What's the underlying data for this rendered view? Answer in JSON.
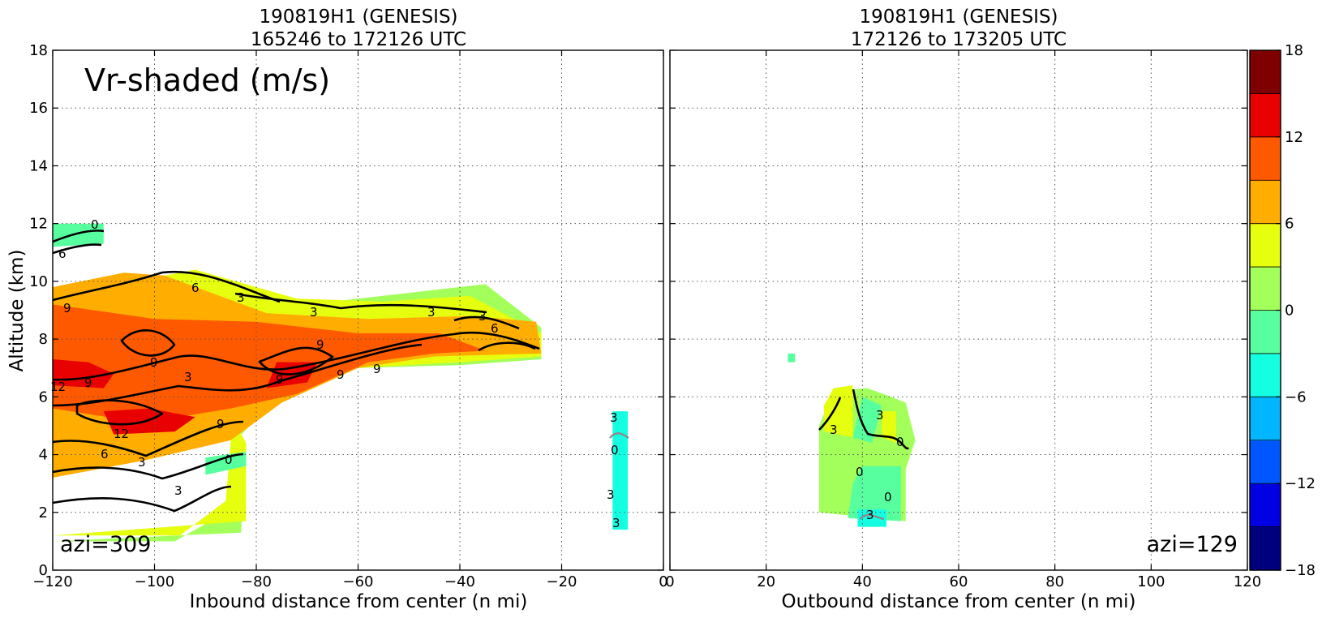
{
  "figure": {
    "left_title": [
      "190819H1 (GENESIS)",
      "165246 to 172126 UTC"
    ],
    "right_title": [
      "190819H1 (GENESIS)",
      "172126 to 173205 UTC"
    ],
    "variable_label": "Vr-shaded (m/s)",
    "left_azi": "azi=309",
    "right_azi": "azi=129"
  },
  "colors": {
    "levels": [
      -18,
      -15,
      -12,
      -9,
      -6,
      -3,
      0,
      3,
      6,
      9,
      12,
      15,
      18
    ],
    "fills": [
      "#00007f",
      "#0000e3",
      "#0057ff",
      "#00b7ff",
      "#14ffe2",
      "#58ff9f",
      "#a3ff5a",
      "#e6ff0f",
      "#ffae00",
      "#ff5900",
      "#e90000",
      "#7f0000"
    ]
  },
  "chart_data": [
    {
      "type": "heatmap",
      "title": "190819H1 (GENESIS)\n165246 to 172126 UTC",
      "xlabel": "Inbound distance from center (n mi)",
      "ylabel": "Altitude (km)",
      "xlim": [
        -120,
        0
      ],
      "ylim": [
        0,
        18
      ],
      "xticks": [
        "−120",
        "−100",
        "−80",
        "−60",
        "−40",
        "−20",
        "0"
      ],
      "yticks": [
        "0",
        "2",
        "4",
        "6",
        "8",
        "10",
        "12",
        "14",
        "16",
        "18"
      ],
      "grid": true,
      "annotation": "Vr-shaded (m/s)",
      "azi_label": "azi=309",
      "regions": [
        {
          "value": 1.5,
          "polygon": [
            [
              -120,
              1
            ],
            [
              -83,
              1.3
            ],
            [
              -82,
              4.4
            ],
            [
              -87,
              6
            ],
            [
              -100,
              8
            ],
            [
              -104,
              10
            ],
            [
              -90,
              10.3
            ],
            [
              -70,
              9.2
            ],
            [
              -50,
              9.6
            ],
            [
              -35,
              9.9
            ],
            [
              -24,
              8.4
            ],
            [
              -24,
              7.3
            ],
            [
              -40,
              7.1
            ],
            [
              -60,
              7
            ],
            [
              -75,
              6.2
            ],
            [
              -85,
              4.3
            ],
            [
              -86,
              2
            ],
            [
              -96,
              1
            ],
            [
              -120,
              1
            ]
          ]
        },
        {
          "value": 4.5,
          "polygon": [
            [
              -120,
              1.2
            ],
            [
              -82,
              1.7
            ],
            [
              -82,
              4.4
            ],
            [
              -87,
              6
            ],
            [
              -100,
              8
            ],
            [
              -104,
              10
            ],
            [
              -92,
              10.4
            ],
            [
              -72,
              9.4
            ],
            [
              -55,
              9.3
            ],
            [
              -38,
              9.5
            ],
            [
              -24,
              8.2
            ],
            [
              -24,
              7.4
            ],
            [
              -40,
              7.2
            ],
            [
              -60,
              7
            ],
            [
              -75,
              6
            ],
            [
              -85,
              4.5
            ],
            [
              -86,
              2.4
            ],
            [
              -95,
              1.2
            ],
            [
              -120,
              1.2
            ]
          ]
        },
        {
          "value": 7.5,
          "polygon": [
            [
              -120,
              3.2
            ],
            [
              -102,
              3.8
            ],
            [
              -85,
              4.5
            ],
            [
              -75,
              5.8
            ],
            [
              -60,
              7
            ],
            [
              -45,
              7.4
            ],
            [
              -24,
              7.5
            ],
            [
              -25,
              8.6
            ],
            [
              -38,
              8.8
            ],
            [
              -58,
              8.7
            ],
            [
              -78,
              8.9
            ],
            [
              -98,
              10.2
            ],
            [
              -106,
              10.3
            ],
            [
              -120,
              9.8
            ]
          ]
        },
        {
          "value": 10.5,
          "polygon": [
            [
              -120,
              5.6
            ],
            [
              -102,
              5.1
            ],
            [
              -85,
              5.6
            ],
            [
              -72,
              6.1
            ],
            [
              -58,
              7.2
            ],
            [
              -45,
              7.5
            ],
            [
              -35,
              7.6
            ],
            [
              -44,
              8.2
            ],
            [
              -60,
              8.2
            ],
            [
              -80,
              8.6
            ],
            [
              -100,
              8.7
            ],
            [
              -112,
              9
            ],
            [
              -120,
              9.2
            ]
          ]
        },
        {
          "value": 13.5,
          "polygon": [
            [
              -120,
              6.4
            ],
            [
              -110,
              6.3
            ],
            [
              -108,
              6.8
            ],
            [
              -113,
              7.2
            ],
            [
              -120,
              7.3
            ]
          ]
        },
        {
          "value": 13.5,
          "polygon": [
            [
              -108,
              4.7
            ],
            [
              -96,
              4.8
            ],
            [
              -92,
              5.3
            ],
            [
              -101,
              5.6
            ],
            [
              -110,
              5.5
            ]
          ]
        },
        {
          "value": 13.5,
          "polygon": [
            [
              -78,
              6.3
            ],
            [
              -70,
              6.5
            ],
            [
              -68,
              7.2
            ],
            [
              -76,
              7.2
            ]
          ]
        },
        {
          "value": -1.5,
          "polygon": [
            [
              -120,
              11.2
            ],
            [
              -110,
              11.3
            ],
            [
              -110,
              12
            ],
            [
              -120,
              12
            ]
          ]
        },
        {
          "value": -1.5,
          "polygon": [
            [
              -90,
              3.3
            ],
            [
              -82,
              3.6
            ],
            [
              -82,
              4.1
            ],
            [
              -90,
              3.9
            ]
          ]
        },
        {
          "value": -4.5,
          "polygon": [
            [
              -10,
              1.4
            ],
            [
              -7,
              1.4
            ],
            [
              -7,
              5.5
            ],
            [
              -10,
              5.5
            ]
          ]
        }
      ],
      "contour_labels": [
        "0",
        "6",
        "6",
        "3",
        "3",
        "3",
        "3",
        "6",
        "9",
        "9",
        "9",
        "9",
        "9",
        "9",
        "9",
        "12",
        "12",
        "6",
        "3",
        "0",
        "3",
        "9",
        "3",
        "0",
        "3",
        "3",
        "3"
      ]
    },
    {
      "type": "heatmap",
      "title": "190819H1 (GENESIS)\n172126 to 173205 UTC",
      "xlabel": "Outbound distance from center (n mi)",
      "ylabel": "",
      "xlim": [
        0,
        120
      ],
      "ylim": [
        0,
        18
      ],
      "xticks": [
        "0",
        "20",
        "40",
        "60",
        "80",
        "100",
        "120"
      ],
      "yticks": [],
      "grid": true,
      "azi_label": "azi=129",
      "regions": [
        {
          "value": 1.5,
          "polygon": [
            [
              31,
              2
            ],
            [
              49,
              1.7
            ],
            [
              49,
              3.5
            ],
            [
              51,
              4.5
            ],
            [
              49,
              5.8
            ],
            [
              46,
              6
            ],
            [
              41,
              6.3
            ],
            [
              34,
              6.2
            ],
            [
              31,
              5
            ]
          ]
        },
        {
          "value": 4.5,
          "polygon": [
            [
              32,
              4.8
            ],
            [
              38,
              4.6
            ],
            [
              38,
              6.4
            ],
            [
              34,
              6.3
            ],
            [
              32,
              5.7
            ]
          ]
        },
        {
          "value": 4.5,
          "polygon": [
            [
              44,
              4.6
            ],
            [
              47,
              4.4
            ],
            [
              47,
              5.5
            ],
            [
              44,
              5.5
            ]
          ]
        },
        {
          "value": -1.5,
          "polygon": [
            [
              37,
              1.8
            ],
            [
              48,
              1.7
            ],
            [
              48,
              3.6
            ],
            [
              40,
              3.6
            ],
            [
              38,
              3
            ]
          ]
        },
        {
          "value": -1.5,
          "polygon": [
            [
              38,
              4.6
            ],
            [
              42,
              4.4
            ],
            [
              44,
              5.7
            ],
            [
              40,
              6
            ]
          ]
        },
        {
          "value": -4.5,
          "polygon": [
            [
              39,
              1.5
            ],
            [
              45,
              1.5
            ],
            [
              45,
              2.1
            ],
            [
              39,
              2.1
            ]
          ]
        },
        {
          "value": -1.5,
          "polygon": [
            [
              24.5,
              7.2
            ],
            [
              26,
              7.2
            ],
            [
              26,
              7.5
            ],
            [
              24.5,
              7.5
            ]
          ]
        }
      ],
      "contour_labels": [
        "3",
        "3",
        "0",
        "0",
        "0",
        "3"
      ]
    }
  ],
  "colorbar": {
    "tick_labels": [
      "18",
      "12",
      "6",
      "0",
      "−6",
      "−12",
      "−18"
    ]
  }
}
